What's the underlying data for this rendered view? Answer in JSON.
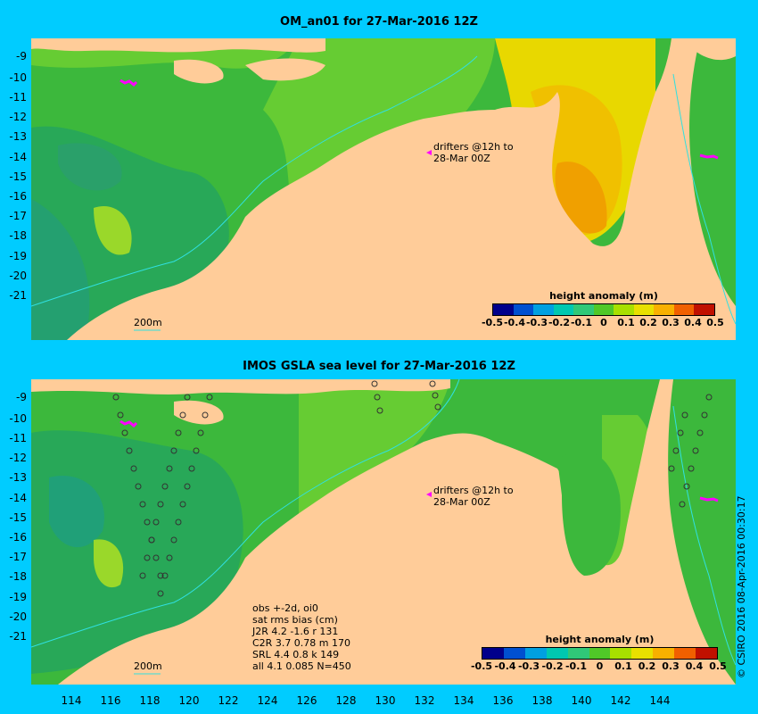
{
  "top_panel": {
    "title": "OM_an01 for 27-Mar-2016 12Z",
    "drifter_line1": "drifters @12h to",
    "drifter_line2": "28-Mar 00Z",
    "scale_label": "200m"
  },
  "bottom_panel": {
    "title": "IMOS GSLA sea level  for 27-Mar-2016 12Z",
    "drifter_line1": "drifters @12h to",
    "drifter_line2": "28-Mar 00Z",
    "scale_label": "200m",
    "stats": [
      "obs +-2d, oi0",
      "sat rms bias (cm)",
      "J2R   4.2  -1.6  r 131",
      "C2R   3.7  0.78  m 170",
      "SRL   4.4  0.8  k 149",
      "all   4.1  0.085  N=450"
    ]
  },
  "colorbar": {
    "title": "height anomaly (m)",
    "ticks": [
      "-0.5",
      "-0.4",
      "-0.3",
      "-0.2",
      "-0.1",
      "0",
      "0.1",
      "0.2",
      "0.3",
      "0.4",
      "0.5"
    ],
    "colors": [
      "#00008b",
      "#0050d0",
      "#00a0e0",
      "#00c8b0",
      "#30c878",
      "#50c828",
      "#a8e000",
      "#e8e000",
      "#f8b000",
      "#f06000",
      "#c01000"
    ]
  },
  "latitude_labels": [
    "-9",
    "-10",
    "-11",
    "-12",
    "-13",
    "-14",
    "-15",
    "-16",
    "-17",
    "-18",
    "-19",
    "-20",
    "-21"
  ],
  "longitude_labels": [
    "114",
    "116",
    "118",
    "120",
    "122",
    "124",
    "126",
    "128",
    "130",
    "132",
    "134",
    "136",
    "138",
    "140",
    "142",
    "144"
  ],
  "credit": "© CSIRO 2016  08-Apr-2016 00:30:17",
  "colors": {
    "background": "#00ccff",
    "land": "#ffcc99",
    "ocean_green": "#3cb83c",
    "drifter": "#ff00ff"
  }
}
